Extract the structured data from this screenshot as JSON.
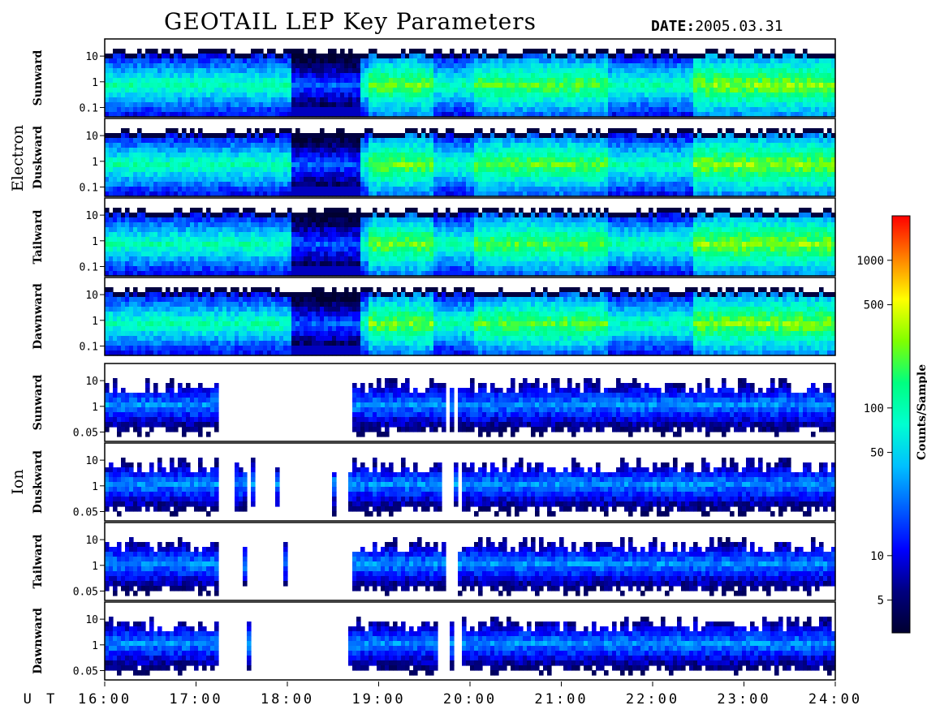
{
  "header": {
    "title": "GEOTAIL LEP Key Parameters",
    "date_label": "DATE:",
    "date_value": "2005.03.31"
  },
  "chart_data": {
    "type": "heatmap",
    "title": "GEOTAIL LEP Key Parameters",
    "date": "2005.03.31",
    "x_axis": {
      "label": "U T",
      "range": [
        "16:00",
        "24:00"
      ],
      "ticks": [
        "16:00",
        "17:00",
        "18:00",
        "19:00",
        "20:00",
        "21:00",
        "22:00",
        "23:00",
        "24:00"
      ]
    },
    "y_scale": "log",
    "groups": [
      {
        "name": "Electron",
        "y_ticks": [
          "10",
          "1",
          "0.1"
        ],
        "ylim": [
          0.07,
          20
        ],
        "panels": [
          "Sunward",
          "Duskward",
          "Tailward",
          "Dawnward"
        ]
      },
      {
        "name": "Ion",
        "y_ticks": [
          "10",
          "1",
          "0.05"
        ],
        "ylim": [
          0.05,
          30
        ],
        "panels": [
          "Sunward",
          "Duskward",
          "Tailward",
          "Dawnward"
        ]
      }
    ],
    "colorbar": {
      "label": "Counts/Sample",
      "scale": "log",
      "range": [
        3,
        2000
      ],
      "ticks": [
        "1000",
        "500",
        "100",
        "50",
        "10",
        "5"
      ],
      "colors": [
        "#000030",
        "#000080",
        "#0000ff",
        "#0060ff",
        "#00c0ff",
        "#00ffd0",
        "#00ff80",
        "#80ff00",
        "#ffff00",
        "#ff8000",
        "#ff0000"
      ]
    }
  }
}
